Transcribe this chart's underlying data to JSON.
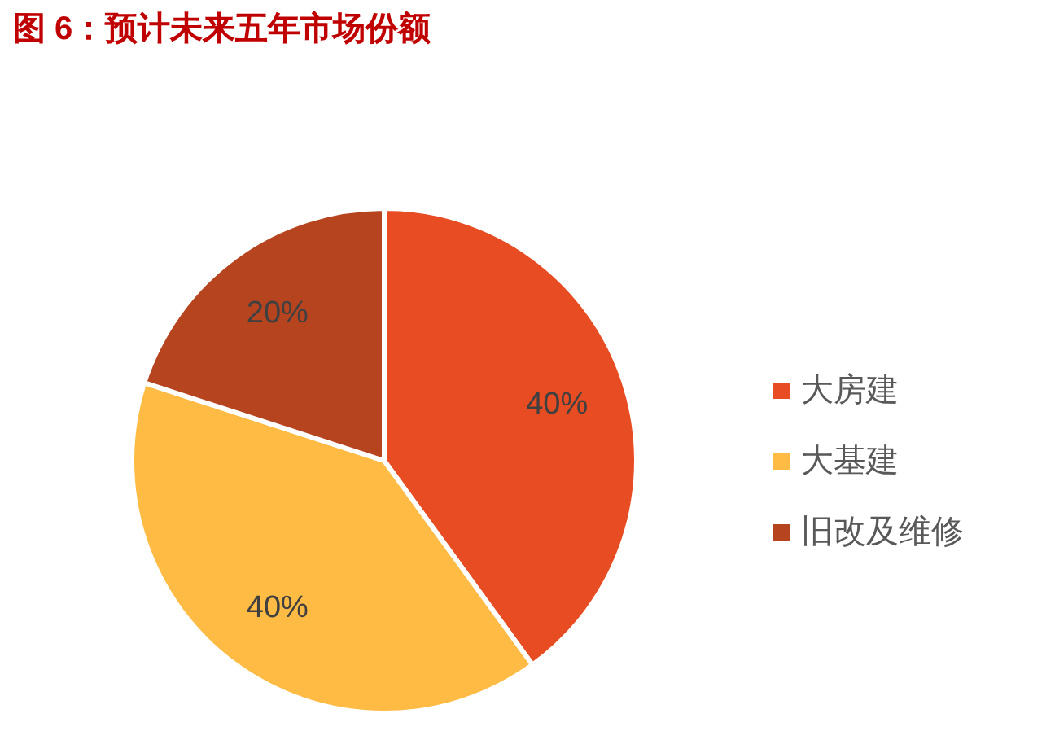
{
  "chart_data": {
    "type": "pie",
    "title": "图 6：预计未来五年市场份额",
    "categories": [
      "大房建",
      "大基建",
      "旧改及维修"
    ],
    "values": [
      40,
      40,
      20
    ],
    "colors": [
      "#e84c22",
      "#ffbb44",
      "#b6441f"
    ],
    "value_labels": [
      "40%",
      "40%",
      "20%"
    ],
    "legend": "right"
  }
}
